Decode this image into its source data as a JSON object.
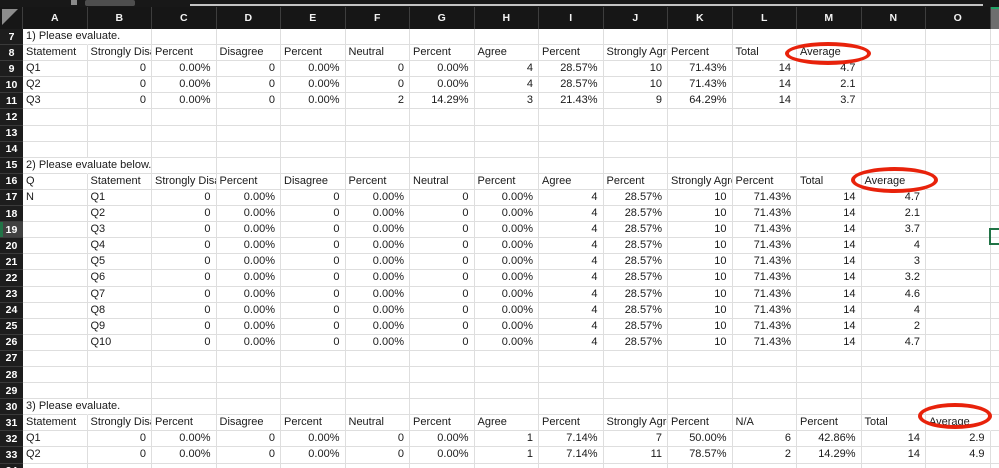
{
  "app": {
    "type": "spreadsheet"
  },
  "colors": {
    "header_bg": "#161616",
    "row_header_bg": "#1d1d1d",
    "selected_row_header_bg": "#414141",
    "selection_green": "#217346",
    "gridline": "#dedede",
    "annotation_red": "#e8220b",
    "cell_text": "#1a1a1a"
  },
  "sheet": {
    "columns": [
      "A",
      "B",
      "C",
      "D",
      "E",
      "F",
      "G",
      "H",
      "I",
      "J",
      "K",
      "L",
      "M",
      "N",
      "O"
    ],
    "first_visible_row": 7,
    "selected_row": 19,
    "rows": [
      {
        "n": 7,
        "cells": [
          "1) Please evaluate."
        ]
      },
      {
        "n": 8,
        "cells": [
          "Statement",
          "Strongly Disagree",
          "Percent",
          "Disagree",
          "Percent",
          "Neutral",
          "Percent",
          "Agree",
          "Percent",
          "Strongly Agree",
          "Percent",
          "Total",
          "Average"
        ]
      },
      {
        "n": 9,
        "cells": [
          "Q1",
          "0",
          "0.00%",
          "0",
          "0.00%",
          "0",
          "0.00%",
          "4",
          "28.57%",
          "10",
          "71.43%",
          "14",
          "4.7"
        ]
      },
      {
        "n": 10,
        "cells": [
          "Q2",
          "0",
          "0.00%",
          "0",
          "0.00%",
          "0",
          "0.00%",
          "4",
          "28.57%",
          "10",
          "71.43%",
          "14",
          "2.1"
        ]
      },
      {
        "n": 11,
        "cells": [
          "Q3",
          "0",
          "0.00%",
          "0",
          "0.00%",
          "2",
          "14.29%",
          "3",
          "21.43%",
          "9",
          "64.29%",
          "14",
          "3.7"
        ]
      },
      {
        "n": 12,
        "cells": []
      },
      {
        "n": 13,
        "cells": []
      },
      {
        "n": 14,
        "cells": []
      },
      {
        "n": 15,
        "cells": [
          "2) Please evaluate below."
        ]
      },
      {
        "n": 16,
        "cells": [
          "Q",
          "Statement",
          "Strongly Disagree",
          "Percent",
          "Disagree",
          "Percent",
          "Neutral",
          "Percent",
          "Agree",
          "Percent",
          "Strongly Agree",
          "Percent",
          "Total",
          "Average"
        ]
      },
      {
        "n": 17,
        "cells": [
          "N",
          "Q1",
          "0",
          "0.00%",
          "0",
          "0.00%",
          "0",
          "0.00%",
          "4",
          "28.57%",
          "10",
          "71.43%",
          "14",
          "4.7"
        ]
      },
      {
        "n": 18,
        "cells": [
          "",
          "Q2",
          "0",
          "0.00%",
          "0",
          "0.00%",
          "0",
          "0.00%",
          "4",
          "28.57%",
          "10",
          "71.43%",
          "14",
          "2.1"
        ]
      },
      {
        "n": 19,
        "cells": [
          "",
          "Q3",
          "0",
          "0.00%",
          "0",
          "0.00%",
          "0",
          "0.00%",
          "4",
          "28.57%",
          "10",
          "71.43%",
          "14",
          "3.7"
        ]
      },
      {
        "n": 20,
        "cells": [
          "",
          "Q4",
          "0",
          "0.00%",
          "0",
          "0.00%",
          "0",
          "0.00%",
          "4",
          "28.57%",
          "10",
          "71.43%",
          "14",
          "4"
        ]
      },
      {
        "n": 21,
        "cells": [
          "",
          "Q5",
          "0",
          "0.00%",
          "0",
          "0.00%",
          "0",
          "0.00%",
          "4",
          "28.57%",
          "10",
          "71.43%",
          "14",
          "3"
        ]
      },
      {
        "n": 22,
        "cells": [
          "",
          "Q6",
          "0",
          "0.00%",
          "0",
          "0.00%",
          "0",
          "0.00%",
          "4",
          "28.57%",
          "10",
          "71.43%",
          "14",
          "3.2"
        ]
      },
      {
        "n": 23,
        "cells": [
          "",
          "Q7",
          "0",
          "0.00%",
          "0",
          "0.00%",
          "0",
          "0.00%",
          "4",
          "28.57%",
          "10",
          "71.43%",
          "14",
          "4.6"
        ]
      },
      {
        "n": 24,
        "cells": [
          "",
          "Q8",
          "0",
          "0.00%",
          "0",
          "0.00%",
          "0",
          "0.00%",
          "4",
          "28.57%",
          "10",
          "71.43%",
          "14",
          "4"
        ]
      },
      {
        "n": 25,
        "cells": [
          "",
          "Q9",
          "0",
          "0.00%",
          "0",
          "0.00%",
          "0",
          "0.00%",
          "4",
          "28.57%",
          "10",
          "71.43%",
          "14",
          "2"
        ]
      },
      {
        "n": 26,
        "cells": [
          "",
          "Q10",
          "0",
          "0.00%",
          "0",
          "0.00%",
          "0",
          "0.00%",
          "4",
          "28.57%",
          "10",
          "71.43%",
          "14",
          "4.7"
        ]
      },
      {
        "n": 27,
        "cells": []
      },
      {
        "n": 28,
        "cells": []
      },
      {
        "n": 29,
        "cells": []
      },
      {
        "n": 30,
        "cells": [
          "3) Please evaluate."
        ]
      },
      {
        "n": 31,
        "cells": [
          "Statement",
          "Strongly Disagree",
          "Percent",
          "Disagree",
          "Percent",
          "Neutral",
          "Percent",
          "Agree",
          "Percent",
          "Strongly Agree",
          "Percent",
          "N/A",
          "Percent",
          "Total",
          "Average"
        ]
      },
      {
        "n": 32,
        "cells": [
          "Q1",
          "0",
          "0.00%",
          "0",
          "0.00%",
          "0",
          "0.00%",
          "1",
          "7.14%",
          "7",
          "50.00%",
          "6",
          "42.86%",
          "14",
          "2.9"
        ]
      },
      {
        "n": 33,
        "cells": [
          "Q2",
          "0",
          "0.00%",
          "0",
          "0.00%",
          "0",
          "0.00%",
          "1",
          "7.14%",
          "11",
          "78.57%",
          "2",
          "14.29%",
          "14",
          "4.9"
        ]
      },
      {
        "n": 34,
        "cells": []
      }
    ]
  },
  "annotations": [
    {
      "type": "red-circle",
      "text_circled": "Average",
      "cell": "M8"
    },
    {
      "type": "red-circle",
      "text_circled": "Average",
      "cell": "N16"
    },
    {
      "type": "red-circle",
      "text_circled": "Average",
      "cell": "O31"
    }
  ]
}
